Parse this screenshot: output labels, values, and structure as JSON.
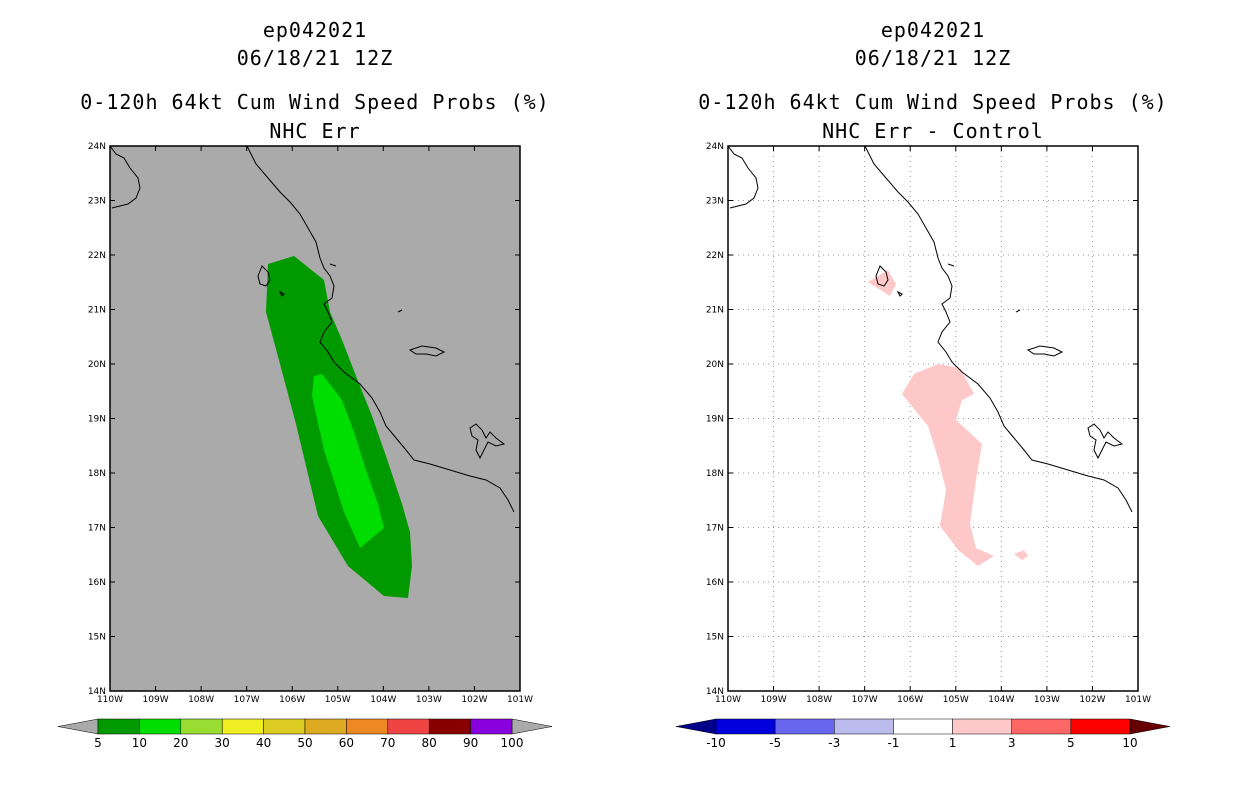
{
  "left": {
    "title_line1": "ep042021",
    "title_line2": "06/18/21 12Z",
    "title_line3": "0-120h 64kt Cum Wind Speed Probs (%)",
    "title_line4": "NHC Err",
    "background_color": "#aaaaaa",
    "colorbar": {
      "labels": [
        "5",
        "10",
        "20",
        "30",
        "40",
        "50",
        "60",
        "70",
        "80",
        "90",
        "100"
      ],
      "colors": [
        "#009900",
        "#00dd00",
        "#99dd33",
        "#eeee22",
        "#ddcc22",
        "#ddaa22",
        "#ee8822",
        "#ee4444",
        "#880000",
        "#8800dd"
      ],
      "under_color": "#aaaaaa",
      "over_color": "#aaaaaa"
    }
  },
  "right": {
    "title_line1": "ep042021",
    "title_line2": "06/18/21 12Z",
    "title_line3": "0-120h 64kt Cum Wind Speed Probs (%)",
    "title_line4": "NHC Err - Control",
    "background_color": "#ffffff",
    "colorbar": {
      "labels": [
        "-10",
        "-5",
        "-3",
        "-1",
        "1",
        "3",
        "5",
        "10"
      ],
      "colors": [
        "#0000dd",
        "#6666ee",
        "#bbbbee",
        "#ffffff",
        "#ffc8c8",
        "#ff6666",
        "#ff0000"
      ],
      "under_color": "#000088",
      "over_color": "#660000"
    }
  },
  "map": {
    "lat_labels": [
      "24N",
      "23N",
      "22N",
      "21N",
      "20N",
      "19N",
      "18N",
      "17N",
      "16N",
      "15N",
      "14N"
    ],
    "lon_labels": [
      "110W",
      "109W",
      "108W",
      "107W",
      "106W",
      "105W",
      "104W",
      "103W",
      "102W",
      "101W"
    ]
  }
}
